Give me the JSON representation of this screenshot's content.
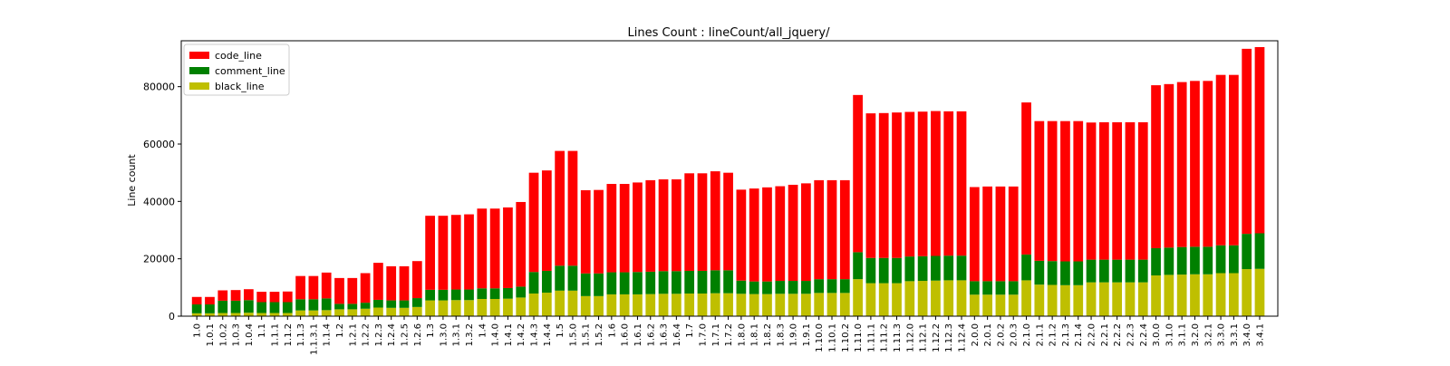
{
  "chart_data": {
    "type": "bar",
    "stacked": true,
    "title": "Lines Count :  lineCount/all_jquery/",
    "xlabel": "",
    "ylabel": "Line count",
    "ylim": [
      0,
      96000
    ],
    "yticks": [
      0,
      20000,
      40000,
      60000,
      80000
    ],
    "grid": false,
    "legend_position": "top-left",
    "categories": [
      "1.0",
      "1.0.1",
      "1.0.2",
      "1.0.3",
      "1.0.4",
      "1.1",
      "1.1.1",
      "1.1.2",
      "1.1.3",
      "1.1.3.1",
      "1.1.4",
      "1.2",
      "1.2.1",
      "1.2.2",
      "1.2.3",
      "1.2.4",
      "1.2.5",
      "1.2.6",
      "1.3",
      "1.3.0",
      "1.3.1",
      "1.3.2",
      "1.4",
      "1.4.0",
      "1.4.1",
      "1.4.2",
      "1.4.3",
      "1.4.4",
      "1.5",
      "1.5.0",
      "1.5.1",
      "1.5.2",
      "1.6",
      "1.6.0",
      "1.6.1",
      "1.6.2",
      "1.6.3",
      "1.6.4",
      "1.7",
      "1.7.0",
      "1.7.1",
      "1.7.2",
      "1.8.0",
      "1.8.1",
      "1.8.2",
      "1.8.3",
      "1.9.0",
      "1.9.1",
      "1.10.0",
      "1.10.1",
      "1.10.2",
      "1.11.0",
      "1.11.1",
      "1.11.2",
      "1.11.3",
      "1.12.0",
      "1.12.1",
      "1.12.2",
      "1.12.3",
      "1.12.4",
      "2.0.0",
      "2.0.1",
      "2.0.2",
      "2.0.3",
      "2.1.0",
      "2.1.1",
      "2.1.2",
      "2.1.3",
      "2.1.4",
      "2.2.0",
      "2.2.1",
      "2.2.2",
      "2.2.3",
      "2.2.4",
      "3.0.0",
      "3.1.0",
      "3.1.1",
      "3.2.0",
      "3.2.1",
      "3.3.0",
      "3.3.1",
      "3.4.0",
      "3.4.1"
    ],
    "series": [
      {
        "name": "black_line",
        "color": "#bfbf00",
        "values": [
          1000,
          1000,
          1100,
          1100,
          1200,
          1100,
          1100,
          1100,
          2000,
          2000,
          2100,
          2400,
          2400,
          2600,
          3000,
          2900,
          2900,
          3200,
          5500,
          5500,
          5600,
          5600,
          6000,
          6000,
          6100,
          6500,
          7900,
          8200,
          8900,
          8900,
          7000,
          7000,
          7600,
          7600,
          7600,
          7700,
          7800,
          7800,
          7900,
          7900,
          8000,
          8000,
          7800,
          7700,
          7700,
          7800,
          7800,
          7800,
          8100,
          8100,
          8100,
          12900,
          11500,
          11500,
          11500,
          12200,
          12300,
          12400,
          12500,
          12500,
          7500,
          7500,
          7500,
          7500,
          12500,
          11000,
          10900,
          10800,
          10800,
          11800,
          11800,
          11800,
          11800,
          11800,
          14200,
          14400,
          14500,
          14600,
          14600,
          15000,
          15000,
          16400,
          16500
        ]
      },
      {
        "name": "comment_line",
        "color": "#008000",
        "values": [
          3100,
          3100,
          4300,
          4300,
          4400,
          3800,
          3800,
          3800,
          3900,
          3900,
          4100,
          1900,
          1900,
          2100,
          2700,
          2600,
          2600,
          3100,
          3700,
          3700,
          3700,
          3700,
          3700,
          3700,
          3700,
          3800,
          7500,
          7600,
          8700,
          8700,
          7900,
          7900,
          7700,
          7700,
          7800,
          7800,
          7900,
          7900,
          7900,
          7900,
          8000,
          8000,
          4600,
          4400,
          4400,
          4500,
          4500,
          4500,
          4800,
          4800,
          4800,
          9400,
          8800,
          8800,
          8800,
          8600,
          8600,
          8600,
          8600,
          8600,
          4700,
          4700,
          4700,
          4700,
          9000,
          8300,
          8300,
          8300,
          8300,
          7900,
          7900,
          7900,
          7900,
          7900,
          9500,
          9500,
          9600,
          9600,
          9600,
          9700,
          9700,
          12300,
          12400
        ]
      },
      {
        "name": "code_line",
        "color": "#ff0000",
        "values": [
          2600,
          2600,
          3600,
          3700,
          3800,
          3600,
          3600,
          3700,
          8100,
          8100,
          9000,
          9000,
          9000,
          10300,
          12900,
          11900,
          11900,
          12900,
          25800,
          25800,
          26000,
          26200,
          27800,
          27800,
          28100,
          29500,
          34600,
          35000,
          40000,
          40000,
          29000,
          29100,
          30800,
          30800,
          31200,
          31900,
          32000,
          32000,
          34000,
          34000,
          34500,
          34000,
          31700,
          32400,
          32800,
          33000,
          33500,
          34000,
          34500,
          34500,
          34500,
          54800,
          50400,
          50500,
          50700,
          50400,
          50400,
          50500,
          50300,
          50300,
          32800,
          33000,
          33000,
          33000,
          53000,
          48700,
          48800,
          48900,
          48900,
          47800,
          47900,
          47900,
          47900,
          47900,
          56800,
          57000,
          57500,
          57800,
          57800,
          59400,
          59400,
          64500,
          64900
        ]
      }
    ],
    "legend_order": [
      "code_line",
      "comment_line",
      "black_line"
    ]
  }
}
